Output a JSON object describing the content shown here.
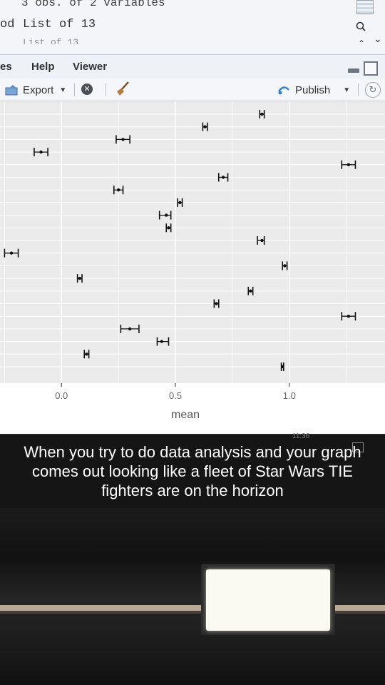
{
  "env_pane": {
    "obs_text": "3 obs. of 2 variables",
    "row_name": "od",
    "row_value": "List of 13",
    "row_value_faded": "List of 13",
    "icons": {
      "grid": "grid-view-icon",
      "search": "search-icon",
      "chevron_down": "chevron-down-icon",
      "chevron_up": "chevron-up-icon"
    }
  },
  "menubar": {
    "items": [
      {
        "label": "es"
      },
      {
        "label": "Help"
      },
      {
        "label": "Viewer"
      }
    ]
  },
  "toolbar": {
    "export_label": "Export",
    "clear_icon": "clear-icon",
    "broom_icon": "broom-icon",
    "publish_label": "Publish",
    "refresh_icon": "refresh-icon"
  },
  "chart_data": {
    "type": "scatter",
    "title": "",
    "xlabel": "mean",
    "ylabel": "",
    "xlim": [
      -0.27,
      1.42
    ],
    "x_ticks": [
      {
        "value": 0.0,
        "label": "0.0"
      },
      {
        "value": 0.5,
        "label": "0.5"
      },
      {
        "value": 1.0,
        "label": "1.0"
      }
    ],
    "grid": true,
    "error_bars": true,
    "note": "y axis categories not visible; points listed top to bottom by row index",
    "points": [
      {
        "row": 1,
        "mean": 0.88,
        "lo": 0.87,
        "hi": 0.89
      },
      {
        "row": 2,
        "mean": 0.63,
        "lo": 0.62,
        "hi": 0.64
      },
      {
        "row": 3,
        "mean": 0.27,
        "lo": 0.24,
        "hi": 0.3
      },
      {
        "row": 4,
        "mean": -0.09,
        "lo": -0.12,
        "hi": -0.06
      },
      {
        "row": 5,
        "mean": 1.26,
        "lo": 1.23,
        "hi": 1.29
      },
      {
        "row": 6,
        "mean": 0.71,
        "lo": 0.69,
        "hi": 0.73
      },
      {
        "row": 7,
        "mean": 0.25,
        "lo": 0.23,
        "hi": 0.27
      },
      {
        "row": 8,
        "mean": 0.52,
        "lo": 0.51,
        "hi": 0.53
      },
      {
        "row": 9,
        "mean": 0.46,
        "lo": 0.43,
        "hi": 0.48
      },
      {
        "row": 10,
        "mean": 0.47,
        "lo": 0.46,
        "hi": 0.48
      },
      {
        "row": 11,
        "mean": 0.88,
        "lo": 0.86,
        "hi": 0.89
      },
      {
        "row": 12,
        "mean": -0.22,
        "lo": -0.25,
        "hi": -0.19
      },
      {
        "row": 13,
        "mean": 0.98,
        "lo": 0.97,
        "hi": 0.99
      },
      {
        "row": 14,
        "mean": 0.08,
        "lo": 0.07,
        "hi": 0.09
      },
      {
        "row": 15,
        "mean": 0.83,
        "lo": 0.82,
        "hi": 0.84
      },
      {
        "row": 16,
        "mean": 0.68,
        "lo": 0.67,
        "hi": 0.69
      },
      {
        "row": 17,
        "mean": 1.26,
        "lo": 1.23,
        "hi": 1.29
      },
      {
        "row": 18,
        "mean": 0.3,
        "lo": 0.26,
        "hi": 0.34
      },
      {
        "row": 19,
        "mean": 0.44,
        "lo": 0.42,
        "hi": 0.47
      },
      {
        "row": 20,
        "mean": 0.11,
        "lo": 0.1,
        "hi": 0.12
      },
      {
        "row": 21,
        "mean": 0.97,
        "lo": 0.965,
        "hi": 0.975
      }
    ]
  },
  "caption": {
    "text": "When you try to do data analysis and your graph comes out looking like a fleet of Star Wars TIE fighters are on the horizon",
    "clock": "11:36"
  }
}
